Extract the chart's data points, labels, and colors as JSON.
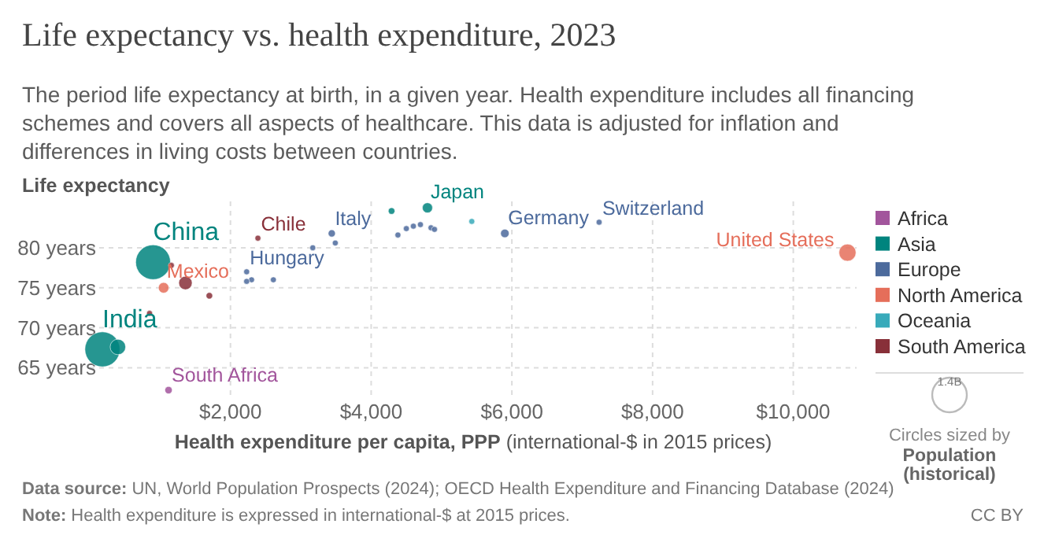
{
  "chart_data": {
    "type": "bubble",
    "title": "Life expectancy vs. health expenditure, 2023",
    "subtitle": "The period life expectancy at birth, in a given year. Health expenditure includes all financing schemes and covers all aspects of healthcare. This data is adjusted for inflation and differences in living costs between countries.",
    "xlabel": "Health expenditure per capita, PPP (international-$ in 2015 prices)",
    "ylabel": "Life expectancy",
    "xlim": [
      0,
      10900
    ],
    "xticks": [
      {
        "value": 2000,
        "label": "$2,000"
      },
      {
        "value": 4000,
        "label": "$4,000"
      },
      {
        "value": 6000,
        "label": "$6,000"
      },
      {
        "value": 8000,
        "label": "$8,000"
      },
      {
        "value": 10000,
        "label": "$10,000"
      }
    ],
    "ylim": [
      61.4,
      85.8
    ],
    "yticks": [
      {
        "value": 65,
        "label": "65 years"
      },
      {
        "value": 70,
        "label": "70 years"
      },
      {
        "value": 75,
        "label": "75 years"
      },
      {
        "value": 80,
        "label": "80 years"
      }
    ],
    "grid": true,
    "legend": "right",
    "size_legend": [
      {
        "value": 1.4,
        "label": "1.4B"
      }
    ],
    "series": [
      {
        "name": "Africa",
        "color": "#a2559c",
        "x": [
          1120
        ],
        "values": [
          62.2
        ],
        "sizes": [
          0.063
        ]
      },
      {
        "name": "Asia",
        "color": "#00847e",
        "x": [
          900,
          180,
          400,
          4290,
          4800
        ],
        "values": [
          78.2,
          67.3,
          67.6,
          84.6,
          85.0
        ],
        "sizes": [
          1.41,
          1.43,
          0.28,
          0.05,
          0.12
        ]
      },
      {
        "name": "Europe",
        "color": "#4c6a9c",
        "x": [
          2230,
          2300,
          2230,
          2610,
          3170,
          3490,
          3440,
          4380,
          4500,
          4600,
          4700,
          4850,
          4900,
          5900,
          7240
        ],
        "values": [
          77.0,
          76.0,
          75.8,
          76.0,
          80.0,
          80.6,
          81.8,
          81.6,
          82.4,
          82.7,
          82.9,
          82.5,
          82.3,
          81.8,
          83.2
        ],
        "sizes": [
          0.04,
          0.04,
          0.04,
          0.04,
          0.04,
          0.04,
          0.06,
          0.04,
          0.04,
          0.04,
          0.04,
          0.04,
          0.04,
          0.084,
          0.04
        ]
      },
      {
        "name": "North America",
        "color": "#e56e5a",
        "x": [
          1050,
          10770
        ],
        "values": [
          75.0,
          79.4
        ],
        "sizes": [
          0.13,
          0.34
        ]
      },
      {
        "name": "Oceania",
        "color": "#38aaba",
        "x": [
          5430
        ],
        "values": [
          83.3
        ],
        "sizes": [
          0.04
        ]
      },
      {
        "name": "South America",
        "color": "#883039",
        "x": [
          2390,
          1160,
          1360,
          1700,
          850
        ],
        "values": [
          81.2,
          77.8,
          75.6,
          74.0,
          71.8
        ],
        "sizes": [
          0.04,
          0.04,
          0.21,
          0.05,
          0.04
        ]
      }
    ],
    "annotations": [
      "Data source: UN, World Population Prospects (2024); OECD Health Expenditure and Financing Database (2024)",
      "Note: Health expenditure is expressed in international-$ at 2015 prices.",
      "CC BY",
      "Circles sized by",
      "Population (historical)",
      {
        "text": "China",
        "x": 900,
        "y": 78.2
      },
      {
        "text": "India",
        "x": 180,
        "y": 67.3
      },
      {
        "text": "Mexico",
        "x": 1050,
        "y": 75.0
      },
      {
        "text": "South Africa",
        "x": 1120,
        "y": 62.2
      },
      {
        "text": "Chile",
        "x": 2390,
        "y": 81.2
      },
      {
        "text": "Hungary",
        "x": 2230,
        "y": 77.0
      },
      {
        "text": "Italy",
        "x": 3440,
        "y": 81.8
      },
      {
        "text": "Japan",
        "x": 4800,
        "y": 85.0
      },
      {
        "text": "Germany",
        "x": 5900,
        "y": 81.8
      },
      {
        "text": "Switzerland",
        "x": 7240,
        "y": 83.2
      },
      {
        "text": "United States",
        "x": 10770,
        "y": 79.4
      }
    ]
  }
}
